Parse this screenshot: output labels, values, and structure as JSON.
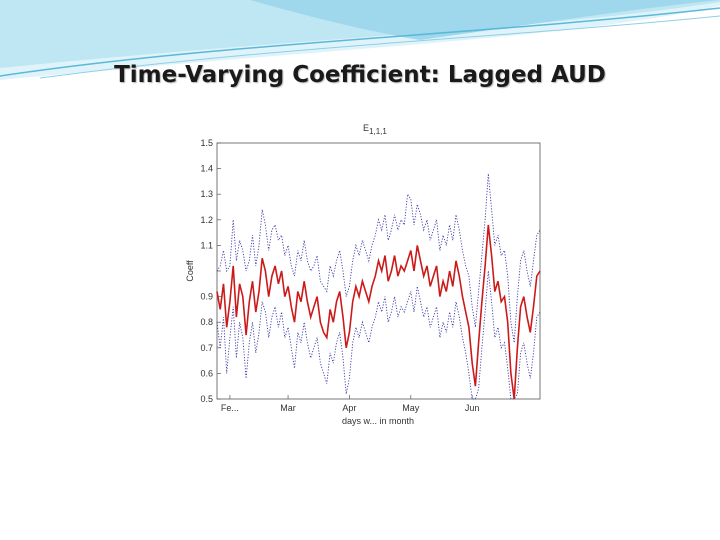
{
  "slide": {
    "title": "Time-Varying Coefficient: Lagged AUD"
  },
  "colors": {
    "header_light": "#dff3fa",
    "header_mid": "#9fd8ec",
    "header_dark": "#5cb8d8",
    "estimate": "#cc1a1a",
    "bands": "#3a3aa8"
  },
  "chart_data": {
    "type": "line",
    "title": "E1,1,1",
    "title_main": "E",
    "title_sub": "1,1,1",
    "xlabel": "days w... in month",
    "ylabel": "Coeff",
    "ylim": [
      0.5,
      1.5
    ],
    "yticks": [
      0.5,
      0.6,
      0.7,
      0.8,
      0.9,
      1.0,
      1.1,
      1.2,
      1.3,
      1.4,
      1.5
    ],
    "ytick_labels": [
      "0.5",
      "0.6",
      "0.7",
      "0.8",
      "0.9",
      "",
      "1.1",
      "1.2",
      "1.3",
      "1.4",
      "1.5"
    ],
    "xlim": [
      0,
      100
    ],
    "xticks": [
      {
        "x": 4,
        "label": "Fe..."
      },
      {
        "x": 22,
        "label": "Mar"
      },
      {
        "x": 41,
        "label": "Apr"
      },
      {
        "x": 60,
        "label": "May"
      },
      {
        "x": 79,
        "label": "Jun"
      }
    ],
    "grid": false,
    "series": [
      {
        "style": "solid",
        "color": "#cc1a1a",
        "values": [
          0.92,
          0.85,
          0.95,
          0.78,
          0.88,
          1.02,
          0.82,
          0.95,
          0.9,
          0.75,
          0.88,
          0.96,
          0.84,
          0.92,
          1.05,
          1.0,
          0.9,
          0.98,
          1.02,
          0.95,
          1.0,
          0.9,
          0.94,
          0.86,
          0.8,
          0.92,
          0.88,
          0.96,
          0.88,
          0.82,
          0.86,
          0.9,
          0.8,
          0.76,
          0.74,
          0.85,
          0.8,
          0.88,
          0.92,
          0.82,
          0.7,
          0.76,
          0.88,
          0.94,
          0.9,
          0.96,
          0.92,
          0.88,
          0.94,
          0.98,
          1.04,
          1.0,
          1.06,
          0.96,
          1.0,
          1.06,
          0.98,
          1.02,
          1.0,
          1.04,
          1.08,
          1.0,
          1.1,
          1.04,
          0.98,
          1.02,
          0.94,
          0.98,
          1.02,
          0.9,
          0.96,
          0.92,
          1.0,
          0.94,
          1.04,
          0.98,
          0.9,
          0.84,
          0.78,
          0.64,
          0.55,
          0.72,
          0.88,
          1.02,
          1.18,
          1.06,
          0.92,
          0.96,
          0.88,
          0.9,
          0.8,
          0.6,
          0.5,
          0.7,
          0.86,
          0.9,
          0.82,
          0.76,
          0.86,
          0.98,
          1.0
        ]
      },
      {
        "style": "dotted",
        "color": "#3a3aa8",
        "values": [
          1.0,
          1.02,
          1.08,
          1.0,
          1.02,
          1.2,
          1.04,
          1.12,
          1.08,
          1.0,
          1.04,
          1.14,
          1.02,
          1.1,
          1.24,
          1.18,
          1.08,
          1.16,
          1.18,
          1.12,
          1.14,
          1.06,
          1.1,
          1.02,
          0.98,
          1.08,
          1.04,
          1.12,
          1.04,
          1.0,
          1.02,
          1.06,
          0.96,
          0.94,
          0.92,
          1.02,
          0.98,
          1.04,
          1.08,
          1.0,
          0.9,
          0.94,
          1.04,
          1.1,
          1.06,
          1.12,
          1.08,
          1.04,
          1.1,
          1.14,
          1.2,
          1.16,
          1.22,
          1.12,
          1.16,
          1.22,
          1.16,
          1.2,
          1.18,
          1.3,
          1.28,
          1.18,
          1.26,
          1.22,
          1.16,
          1.2,
          1.12,
          1.16,
          1.2,
          1.08,
          1.14,
          1.1,
          1.18,
          1.12,
          1.22,
          1.16,
          1.08,
          1.02,
          0.98,
          0.86,
          0.78,
          0.92,
          1.06,
          1.2,
          1.38,
          1.24,
          1.1,
          1.14,
          1.06,
          1.08,
          0.98,
          0.8,
          0.72,
          0.9,
          1.04,
          1.08,
          1.0,
          0.94,
          1.04,
          1.14,
          1.16
        ]
      },
      {
        "style": "dotted",
        "color": "#3a3aa8",
        "values": [
          0.8,
          0.7,
          0.82,
          0.6,
          0.74,
          0.86,
          0.66,
          0.8,
          0.74,
          0.58,
          0.72,
          0.8,
          0.68,
          0.76,
          0.88,
          0.84,
          0.74,
          0.82,
          0.86,
          0.78,
          0.84,
          0.74,
          0.78,
          0.7,
          0.62,
          0.76,
          0.72,
          0.8,
          0.72,
          0.66,
          0.7,
          0.74,
          0.64,
          0.6,
          0.56,
          0.68,
          0.64,
          0.72,
          0.76,
          0.66,
          0.52,
          0.58,
          0.72,
          0.78,
          0.74,
          0.8,
          0.76,
          0.72,
          0.78,
          0.82,
          0.88,
          0.84,
          0.9,
          0.8,
          0.84,
          0.9,
          0.82,
          0.86,
          0.84,
          0.88,
          0.92,
          0.84,
          0.94,
          0.88,
          0.82,
          0.86,
          0.78,
          0.82,
          0.86,
          0.74,
          0.8,
          0.76,
          0.84,
          0.78,
          0.88,
          0.82,
          0.74,
          0.68,
          0.6,
          0.5,
          0.5,
          0.54,
          0.7,
          0.84,
          1.0,
          0.88,
          0.74,
          0.78,
          0.7,
          0.72,
          0.62,
          0.5,
          0.5,
          0.52,
          0.68,
          0.72,
          0.64,
          0.58,
          0.68,
          0.82,
          0.84
        ]
      }
    ]
  }
}
